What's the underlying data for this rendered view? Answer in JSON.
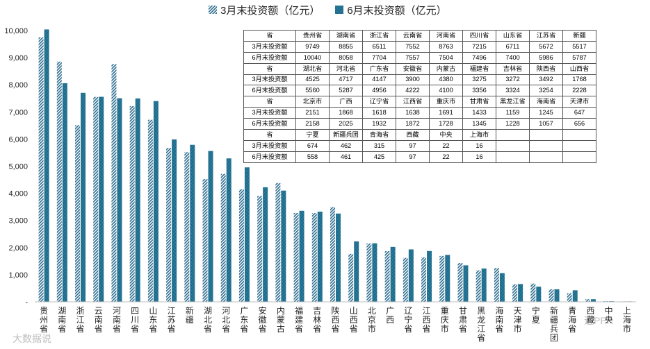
{
  "chart_data": {
    "type": "bar",
    "series": [
      {
        "name": "3月末投资额（亿元）",
        "pattern": "hatch",
        "color": "#2b6c8e",
        "values": [
          9749,
          8855,
          6511,
          7552,
          8763,
          7215,
          6711,
          5672,
          5517,
          4525,
          4717,
          4147,
          3900,
          4380,
          3275,
          3272,
          3492,
          1768,
          2151,
          1868,
          1618,
          1638,
          1691,
          1433,
          1159,
          1245,
          647,
          674,
          462,
          315,
          97,
          22,
          16
        ]
      },
      {
        "name": "6月末投资额（亿元）",
        "pattern": "solid",
        "color": "#2b7f9e",
        "values": [
          10040,
          8058,
          7704,
          7557,
          7504,
          7496,
          7400,
          5986,
          5787,
          5560,
          5287,
          4956,
          4222,
          4100,
          3356,
          3324,
          3254,
          2228,
          2158,
          2025,
          1932,
          1872,
          1728,
          1345,
          1228,
          1057,
          656,
          558,
          461,
          425,
          97,
          22,
          16
        ]
      }
    ],
    "categories": [
      "贵州省",
      "湖南省",
      "浙江省",
      "云南省",
      "河南省",
      "四川省",
      "山东省",
      "江苏省",
      "新疆",
      "湖北省",
      "河北省",
      "广东省",
      "安徽省",
      "内蒙古",
      "福建省",
      "吉林省",
      "陕西省",
      "山西省",
      "北京市",
      "广西",
      "辽宁省",
      "江西省",
      "重庆市",
      "甘肃省",
      "黑龙江省",
      "海南省",
      "天津市",
      "宁夏",
      "新疆兵团",
      "青海省",
      "西藏",
      "中央",
      "上海市"
    ],
    "ylim": [
      0,
      10000
    ],
    "yticks": [
      "-",
      "1,000",
      "2,000",
      "3,000",
      "4,000",
      "5,000",
      "6,000",
      "7,000",
      "8,000",
      "9,000",
      "10,000"
    ],
    "grid": false,
    "legend_position": "top"
  },
  "table": {
    "blocks": [
      {
        "header": "省",
        "names": [
          "贵州省",
          "湖南省",
          "浙江省",
          "云南省",
          "河南省",
          "四川省",
          "山东省",
          "江苏省",
          "新疆"
        ],
        "rows": [
          {
            "label": "3月末投资额",
            "values": [
              "9749",
              "8855",
              "6511",
              "7552",
              "8763",
              "7215",
              "6711",
              "5672",
              "5517"
            ]
          },
          {
            "label": "6月末投资额",
            "values": [
              "10040",
              "8058",
              "7704",
              "7557",
              "7504",
              "7496",
              "7400",
              "5986",
              "5787"
            ]
          }
        ]
      },
      {
        "header": "省",
        "names": [
          "湖北省",
          "河北省",
          "广东省",
          "安徽省",
          "内蒙古",
          "福建省",
          "吉林省",
          "陕西省",
          "山西省"
        ],
        "rows": [
          {
            "label": "3月末投资额",
            "values": [
              "4525",
              "4717",
              "4147",
              "3900",
              "4380",
              "3275",
              "3272",
              "3492",
              "1768"
            ]
          },
          {
            "label": "6月末投资额",
            "values": [
              "5560",
              "5287",
              "4956",
              "4222",
              "4100",
              "3356",
              "3324",
              "3254",
              "2228"
            ]
          }
        ]
      },
      {
        "header": "省",
        "names": [
          "北京市",
          "广西",
          "辽宁省",
          "江西省",
          "重庆市",
          "甘肃省",
          "黑龙江省",
          "海南省",
          "天津市"
        ],
        "rows": [
          {
            "label": "3月末投资额",
            "values": [
              "2151",
              "1868",
              "1618",
              "1638",
              "1691",
              "1433",
              "1159",
              "1245",
              "647"
            ]
          },
          {
            "label": "6月末投资额",
            "values": [
              "2158",
              "2025",
              "1932",
              "1872",
              "1728",
              "1345",
              "1228",
              "1057",
              "656"
            ]
          }
        ]
      },
      {
        "header": "省",
        "names": [
          "宁夏",
          "新疆兵团",
          "青海省",
          "西藏",
          "中央",
          "上海市",
          "",
          "",
          ""
        ],
        "rows": [
          {
            "label": "3月末投资额",
            "values": [
              "674",
              "462",
              "315",
              "97",
              "22",
              "16",
              "",
              "",
              ""
            ]
          },
          {
            "label": "6月末投资额",
            "values": [
              "558",
              "461",
              "425",
              "97",
              "22",
              "16",
              "",
              "",
              ""
            ]
          }
        ]
      }
    ]
  },
  "watermarks": [
    "大数据说",
    "道PPP"
  ]
}
